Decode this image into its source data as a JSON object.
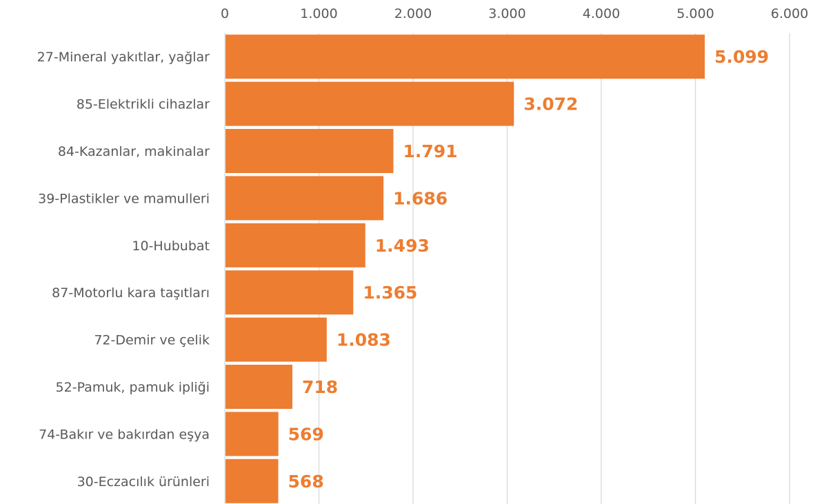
{
  "chart_data": {
    "type": "bar",
    "orientation": "horizontal",
    "title": "",
    "xlabel": "",
    "ylabel": "",
    "categories": [
      "27-Mineral yakıtlar, yağlar",
      "85-Elektrikli cihazlar",
      "84-Kazanlar, makinalar",
      "39-Plastikler ve mamulleri",
      "10-Hububat",
      "87-Motorlu kara taşıtları",
      "72-Demir ve çelik",
      "52-Pamuk, pamuk ipliği",
      "74-Bakır ve bakırdan eşya",
      "30-Eczacılık ürünleri"
    ],
    "values": [
      5099,
      3072,
      1791,
      1686,
      1493,
      1365,
      1083,
      718,
      569,
      568
    ],
    "data_labels": [
      "5.099",
      "3.072",
      "1.791",
      "1.686",
      "1.493",
      "1.365",
      "1.083",
      "718",
      "569",
      "568"
    ],
    "xlim": [
      0,
      6000
    ],
    "ticks": [
      0,
      1000,
      2000,
      3000,
      4000,
      5000,
      6000
    ],
    "tick_labels": [
      "0",
      "1.000",
      "2.000",
      "3.000",
      "4.000",
      "5.000",
      "6.000"
    ],
    "axis_position": "top",
    "grid": true,
    "legend": "none",
    "bar_color": "#ED7D31",
    "label_color": "#ED7D31",
    "text_color": "#595959",
    "grid_color": "#D9D9D9"
  }
}
